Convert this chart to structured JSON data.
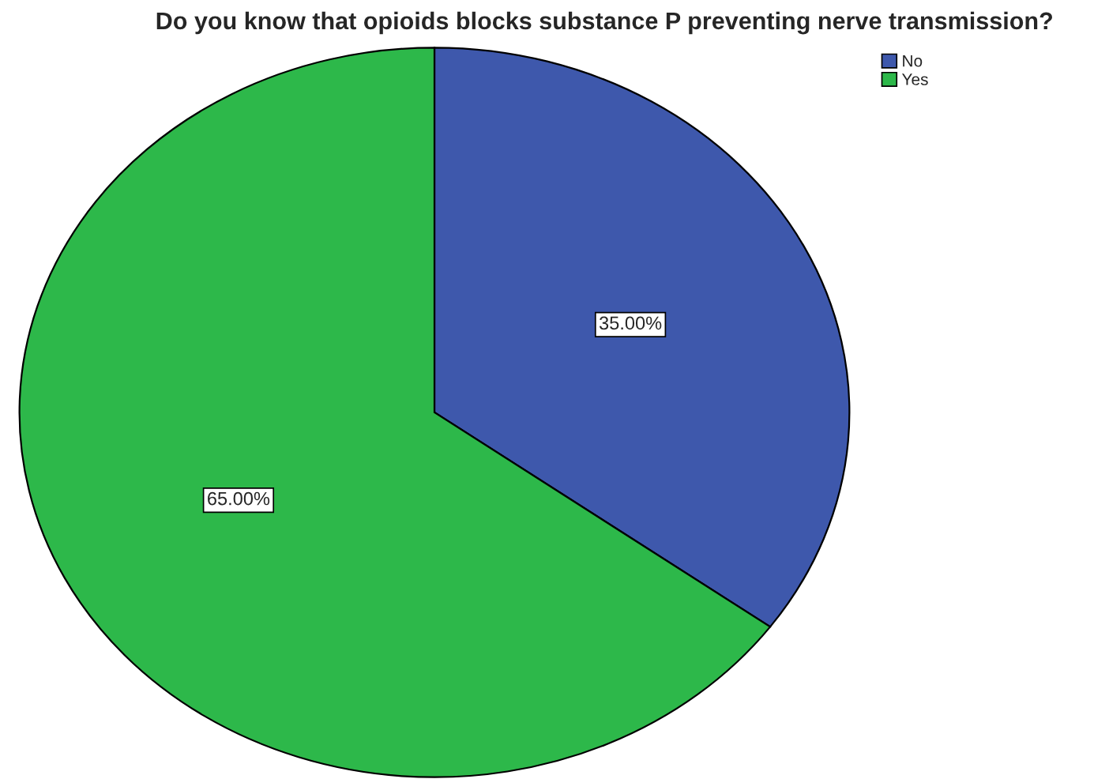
{
  "chart_data": {
    "type": "pie",
    "title": "Do you know that opioids blocks substance P preventing nerve transmission?",
    "categories": [
      "No",
      "Yes"
    ],
    "values": [
      35,
      65
    ],
    "colors": [
      "#3e58ac",
      "#2db84a"
    ],
    "value_labels": [
      "35.00%",
      "65.00%"
    ],
    "legend": "top right"
  }
}
